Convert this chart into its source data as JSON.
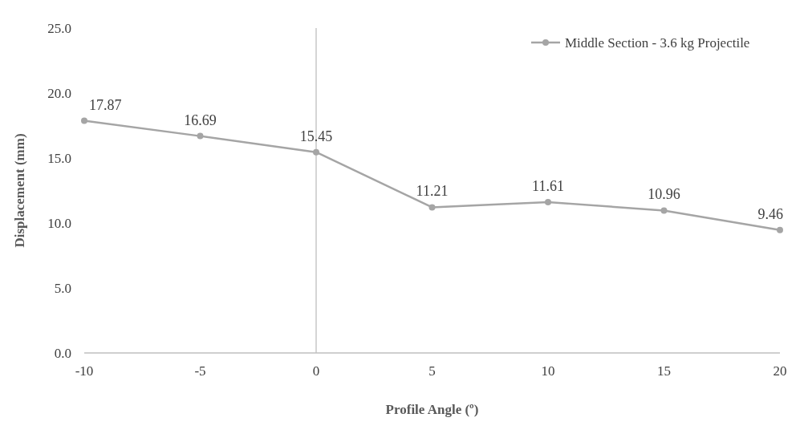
{
  "chart_data": {
    "type": "line",
    "xlabel": "Profile Angle (º)",
    "ylabel": "Displacement (mm)",
    "x": [
      -10,
      -5,
      0,
      5,
      10,
      15,
      20
    ],
    "series": [
      {
        "name": "Middle Section - 3.6 kg Projectile",
        "color": "#a5a5a5",
        "values": [
          17.87,
          16.69,
          15.45,
          11.21,
          11.61,
          10.96,
          9.46
        ]
      }
    ],
    "xlim": [
      -10,
      20
    ],
    "xticks": [
      -10,
      -5,
      0,
      5,
      10,
      15,
      20
    ],
    "ylim": [
      0,
      25
    ],
    "yticks": [
      {
        "value": 0,
        "label": "0.0"
      },
      {
        "value": 5,
        "label": "5.0"
      },
      {
        "value": 10,
        "label": "10.0"
      },
      {
        "value": 15,
        "label": "15.0"
      },
      {
        "value": 20,
        "label": "20.0"
      },
      {
        "value": 25,
        "label": "25.0"
      }
    ],
    "ref_lines": [
      {
        "axis": "x",
        "value": 0,
        "color": "#bfbfbf"
      }
    ],
    "data_labels": true,
    "legend": "top right",
    "marker": "circle",
    "line_style": "solid",
    "grid": false
  }
}
